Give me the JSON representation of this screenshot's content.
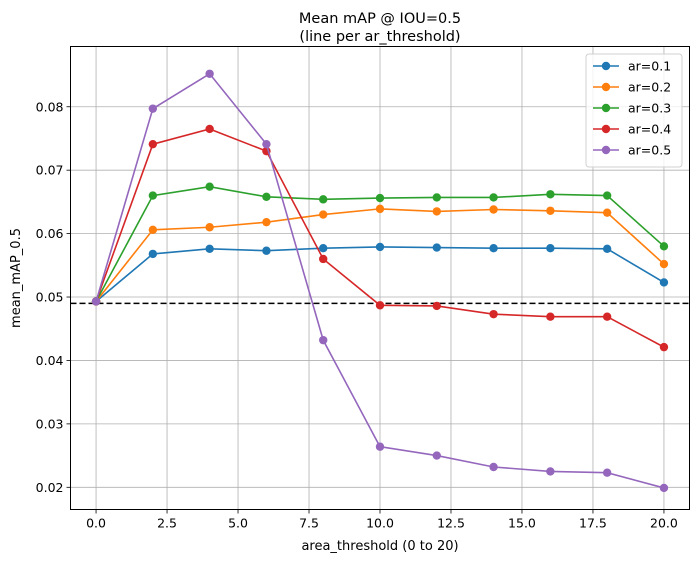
{
  "chart_data": {
    "type": "line",
    "title": "Mean mAP @ IOU=0.5",
    "subtitle": "(line per ar_threshold)",
    "xlabel": "area_threshold (0 to 20)",
    "ylabel": "mean_mAP_0.5",
    "xlim": [
      -0.9,
      20.9
    ],
    "ylim": [
      0.0165,
      0.0895
    ],
    "x_ticks": [
      0.0,
      2.5,
      5.0,
      7.5,
      10.0,
      12.5,
      15.0,
      17.5,
      20.0
    ],
    "x_tick_labels": [
      "0.0",
      "2.5",
      "5.0",
      "7.5",
      "10.0",
      "12.5",
      "15.0",
      "17.5",
      "20.0"
    ],
    "y_ticks": [
      0.02,
      0.03,
      0.04,
      0.05,
      0.06,
      0.07,
      0.08
    ],
    "y_tick_labels": [
      "0.02",
      "0.03",
      "0.04",
      "0.05",
      "0.06",
      "0.07",
      "0.08"
    ],
    "grid": true,
    "legend_position": "top-right",
    "reference_line": {
      "y": 0.049,
      "style": "dashed",
      "color": "#000000"
    },
    "x": [
      0,
      2,
      4,
      6,
      8,
      10,
      12,
      14,
      16,
      18,
      20
    ],
    "series": [
      {
        "name": "ar=0.1",
        "color": "#1f77b4",
        "values": [
          0.0493,
          0.0568,
          0.0576,
          0.0573,
          0.0577,
          0.0579,
          0.0578,
          0.0577,
          0.0577,
          0.0576,
          0.0523
        ]
      },
      {
        "name": "ar=0.2",
        "color": "#ff7f0e",
        "values": [
          0.0493,
          0.0606,
          0.061,
          0.0618,
          0.063,
          0.0639,
          0.0635,
          0.0638,
          0.0636,
          0.0633,
          0.0552
        ]
      },
      {
        "name": "ar=0.3",
        "color": "#2ca02c",
        "values": [
          0.0493,
          0.066,
          0.0674,
          0.0658,
          0.0654,
          0.0656,
          0.0657,
          0.0657,
          0.0662,
          0.066,
          0.058
        ]
      },
      {
        "name": "ar=0.4",
        "color": "#d62728",
        "values": [
          0.0493,
          0.0741,
          0.0765,
          0.073,
          0.056,
          0.0487,
          0.0486,
          0.0473,
          0.0469,
          0.0469,
          0.0421
        ]
      },
      {
        "name": "ar=0.5",
        "color": "#9467bd",
        "values": [
          0.0493,
          0.0797,
          0.0852,
          0.0741,
          0.0432,
          0.0264,
          0.025,
          0.0232,
          0.0225,
          0.0223,
          0.0199
        ]
      }
    ]
  }
}
